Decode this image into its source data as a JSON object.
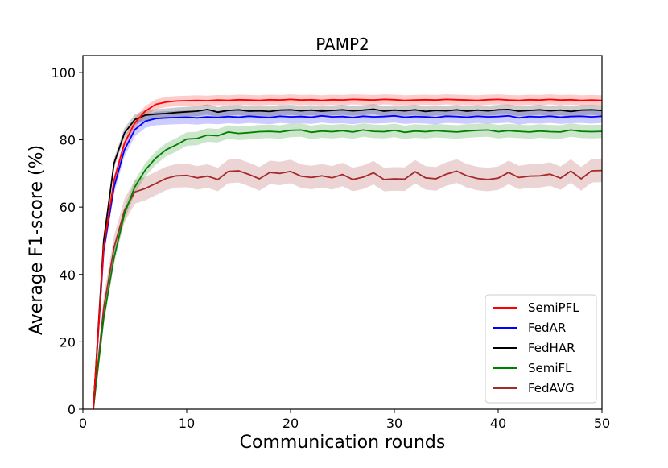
{
  "chart_data": {
    "type": "line",
    "title": "PAMP2",
    "xlabel": "Communication rounds",
    "ylabel": "Average F1-score (%)",
    "xlim": [
      0,
      50
    ],
    "ylim": [
      0,
      105
    ],
    "xticks": [
      0,
      10,
      20,
      30,
      40,
      50
    ],
    "yticks": [
      0,
      20,
      40,
      60,
      80,
      100
    ],
    "legend_position": "bottom-right",
    "x": [
      1,
      2,
      3,
      4,
      5,
      6,
      7,
      8,
      9,
      10,
      11,
      12,
      13,
      14,
      15,
      16,
      17,
      18,
      19,
      20,
      21,
      22,
      23,
      24,
      25,
      26,
      27,
      28,
      29,
      30,
      31,
      32,
      33,
      34,
      35,
      36,
      37,
      38,
      39,
      40,
      41,
      42,
      43,
      44,
      45,
      46,
      47,
      48,
      49,
      50
    ],
    "series": [
      {
        "name": "SemiPFL",
        "color": "#ff0000",
        "band": 1.5,
        "values": [
          0,
          48,
          68,
          79,
          85,
          88.5,
          90.5,
          91.2,
          91.5,
          91.6,
          91.7,
          91.6,
          91.8,
          91.7,
          91.9,
          91.8,
          91.7,
          91.9,
          91.8,
          92,
          91.8,
          91.9,
          91.7,
          91.9,
          91.8,
          92,
          91.9,
          91.8,
          92,
          91.9,
          91.7,
          91.8,
          91.9,
          91.8,
          92,
          91.9,
          91.8,
          91.7,
          91.9,
          92,
          91.8,
          91.7,
          91.9,
          91.8,
          92,
          91.8,
          91.9,
          91.7,
          91.8,
          91.7
        ]
      },
      {
        "name": "FedAR",
        "color": "#0000ff",
        "band": 2,
        "values": [
          0,
          47,
          66,
          77,
          83,
          85.5,
          86.3,
          86.5,
          86.6,
          86.7,
          86.5,
          86.8,
          86.6,
          86.9,
          86.7,
          87,
          86.8,
          86.6,
          87,
          86.8,
          86.9,
          86.7,
          87.1,
          86.8,
          86.9,
          86.6,
          87,
          86.8,
          86.9,
          87.1,
          86.7,
          86.9,
          86.8,
          86.6,
          87,
          86.9,
          86.7,
          87,
          86.8,
          86.9,
          87.1,
          86.5,
          86.9,
          86.8,
          87,
          86.7,
          86.9,
          87,
          86.8,
          87
        ]
      },
      {
        "name": "FedHAR",
        "color": "#000000",
        "band": 1.5,
        "values": [
          0,
          50,
          73,
          82,
          86,
          87.3,
          87.6,
          87.8,
          88.1,
          88.3,
          88.5,
          89,
          88.2,
          88.7,
          88.9,
          88.5,
          88.6,
          88.4,
          88.8,
          88.9,
          88.6,
          88.8,
          88.5,
          88.7,
          88.9,
          88.6,
          88.8,
          89.1,
          88.5,
          88.8,
          88.6,
          88.9,
          88.4,
          88.7,
          88.6,
          88.9,
          88.5,
          88.8,
          88.6,
          88.9,
          89,
          88.5,
          88.7,
          88.9,
          88.6,
          88.8,
          88.4,
          88.8,
          88.9,
          88.7
        ]
      },
      {
        "name": "SemiFL",
        "color": "#008000",
        "band": 2,
        "values": [
          0,
          27,
          45,
          58,
          66,
          71,
          74.5,
          77,
          78.5,
          80.2,
          80.4,
          81.4,
          81.2,
          82.3,
          81.9,
          82.1,
          82.4,
          82.5,
          82.3,
          82.8,
          82.9,
          82.2,
          82.6,
          82.4,
          82.7,
          82.3,
          82.9,
          82.5,
          82.4,
          82.8,
          82.2,
          82.6,
          82.4,
          82.7,
          82.5,
          82.3,
          82.6,
          82.8,
          82.9,
          82.4,
          82.7,
          82.5,
          82.3,
          82.6,
          82.4,
          82.3,
          82.9,
          82.5,
          82.4,
          82.5
        ]
      },
      {
        "name": "FedAVG",
        "color": "#a52a2a",
        "band": 3.5,
        "values": [
          0,
          30,
          48,
          59,
          64.5,
          65.5,
          67,
          68.5,
          69.3,
          69.4,
          68.7,
          69.2,
          68.2,
          70.6,
          70.8,
          69.7,
          68.4,
          70.3,
          70,
          70.6,
          69.2,
          68.8,
          69.3,
          68.7,
          69.7,
          68.2,
          68.9,
          70.2,
          68.2,
          68.4,
          68.3,
          70.5,
          68.7,
          68.4,
          69.8,
          70.7,
          69.3,
          68.5,
          68.2,
          68.6,
          70.3,
          68.8,
          69.2,
          69.3,
          69.8,
          68.6,
          70.7,
          68.4,
          70.8,
          70.9
        ]
      }
    ]
  }
}
